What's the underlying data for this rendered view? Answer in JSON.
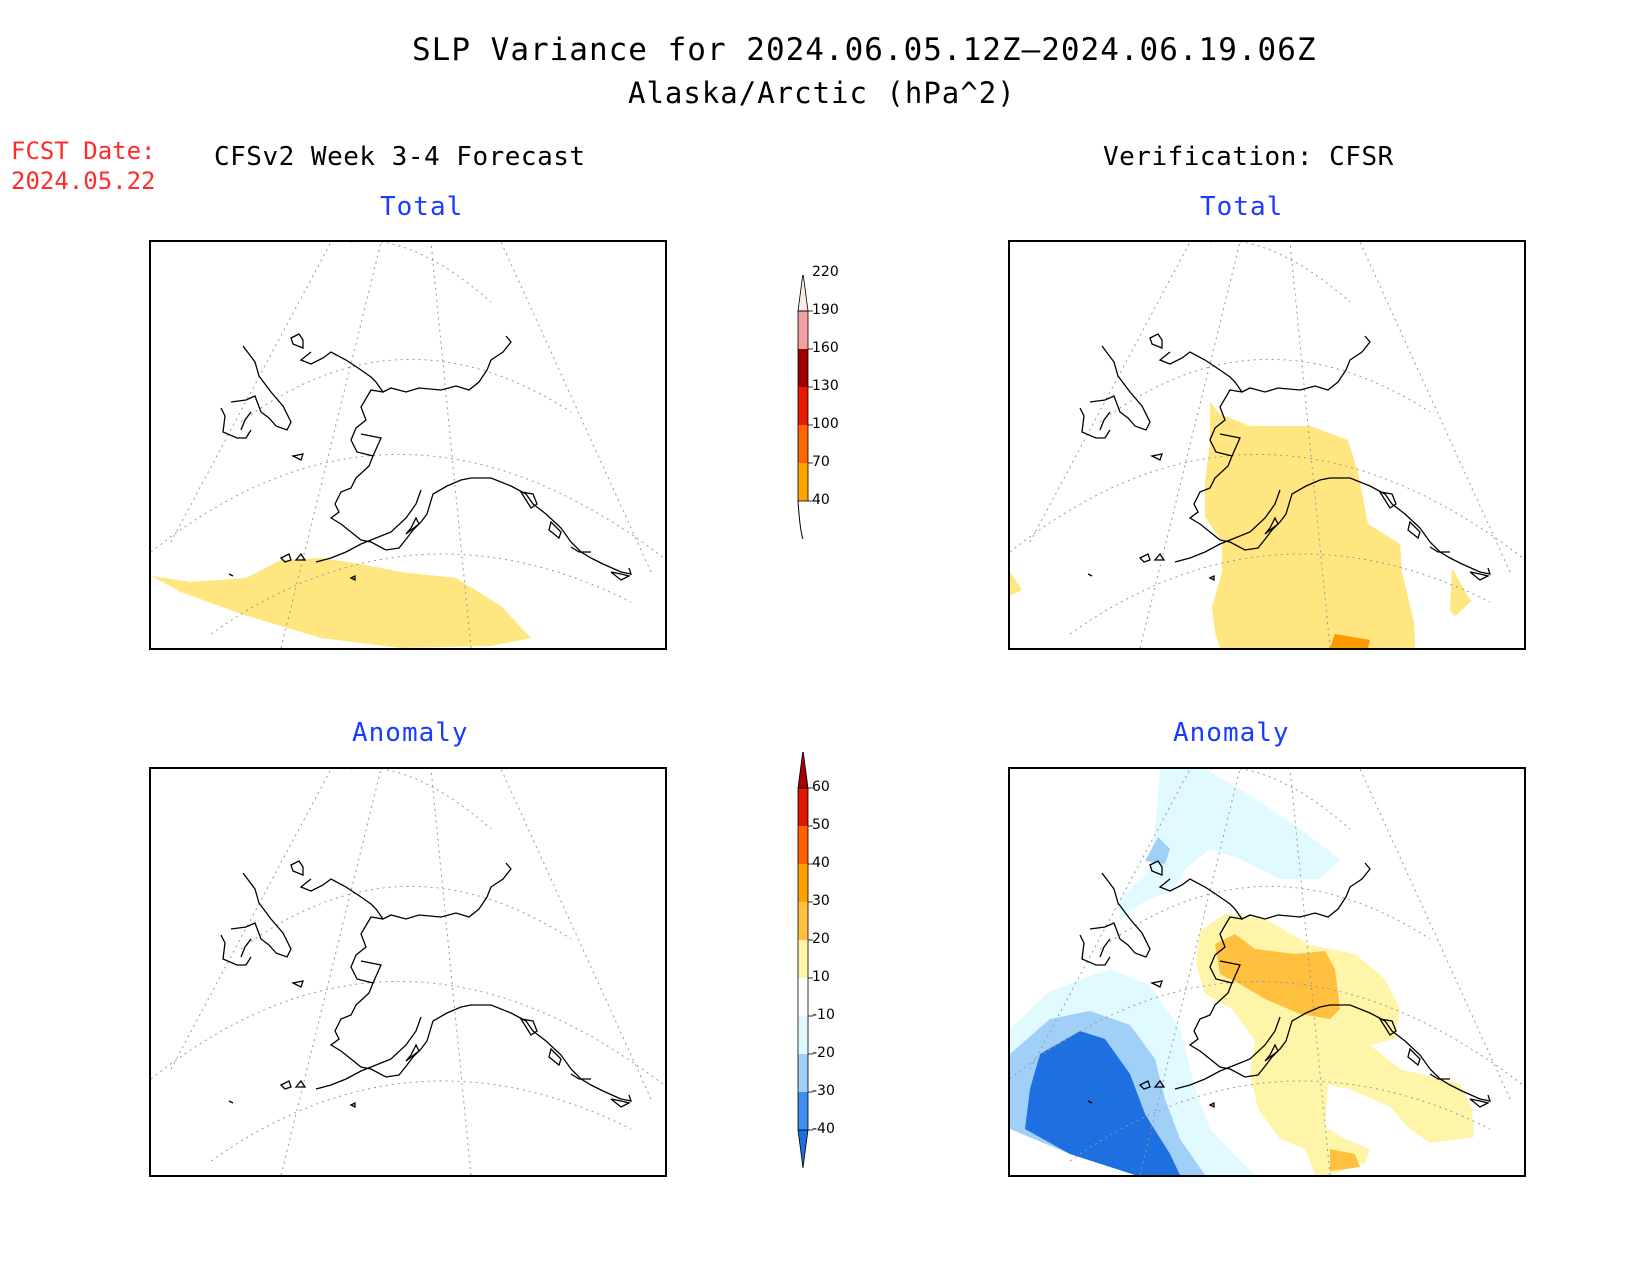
{
  "header": {
    "title": "SLP Variance for 2024.06.05.12Z—2024.06.19.06Z",
    "subtitle": "Alaska/Arctic (hPa^2)",
    "fcst_label": "FCST Date:",
    "fcst_date": "2024.05.22",
    "left_header": "CFSv2 Week 3-4 Forecast",
    "right_header": "Verification: CFSR"
  },
  "panels": {
    "top_left_title": "Total",
    "top_right_title": "Total",
    "bottom_left_title": "Anomaly",
    "bottom_right_title": "Anomaly"
  },
  "colorbar_total": {
    "levels": [
      "40",
      "70",
      "100",
      "130",
      "160",
      "190",
      "220"
    ],
    "colors": [
      "#ffe680",
      "#ffa500",
      "#ff6600",
      "#e61a00",
      "#a00000",
      "#f0a0a0",
      "#ffe8e8"
    ]
  },
  "colorbar_anomaly": {
    "levels": [
      "-40",
      "-30",
      "-20",
      "-10",
      "10",
      "20",
      "30",
      "40",
      "50",
      "60"
    ],
    "colors": [
      "#1e6fe0",
      "#3d8ef0",
      "#a0cff8",
      "#e0faff",
      "#ffffff",
      "#fff5a8",
      "#ffc040",
      "#ffa000",
      "#ff6000",
      "#e01800",
      "#a80000"
    ]
  },
  "colors": {
    "title_red": "#ff2a2a",
    "panel_title_blue": "#1a3cff",
    "fill_yellow": "#ffe680",
    "fill_orange": "#ff9900"
  }
}
